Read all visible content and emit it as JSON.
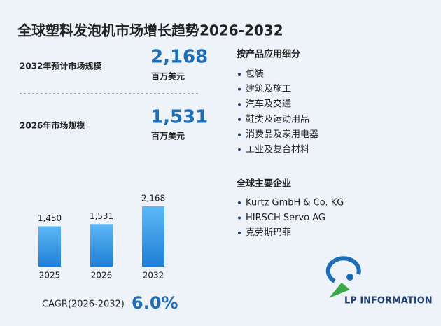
{
  "title": "全球塑料发泡机市场增长趋势2026-2032",
  "stats": [
    {
      "label": "2032年预计市场规模",
      "value": "2,168",
      "unit": "百万美元"
    },
    {
      "label": "2026年市场规模",
      "value": "1,531",
      "unit": "百万美元"
    }
  ],
  "chart_data": {
    "type": "bar",
    "categories": [
      "2025",
      "2026",
      "2032"
    ],
    "values": [
      1450,
      1531,
      2168
    ],
    "value_labels": [
      "1,450",
      "1,531",
      "2,168"
    ],
    "color": "#2a8ee0"
  },
  "cagr": {
    "label": "CAGR(2026-2032)",
    "value": "6.0%"
  },
  "segments": {
    "title": "按产品应用细分",
    "items": [
      "包装",
      "建筑及施工",
      "汽车及交通",
      "鞋类及运动用品",
      "消费品及家用电器",
      "工业及复合材料"
    ]
  },
  "companies": {
    "title": "全球主要企业",
    "items": [
      "Kurtz GmbH & Co. KG",
      "HIRSCH Servo AG",
      "克劳斯玛菲"
    ]
  },
  "logo": "LP INFORMATION"
}
